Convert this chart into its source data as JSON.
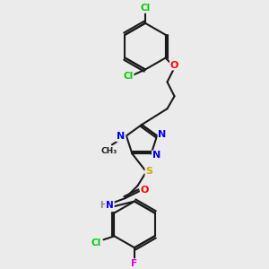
{
  "bg_color": "#ebebeb",
  "bond_color": "#1a1a1a",
  "atom_colors": {
    "Cl": "#00cc00",
    "F": "#dd00dd",
    "O": "#ff0000",
    "N": "#0000ee",
    "S": "#ccaa00",
    "H": "#888888",
    "C": "#1a1a1a"
  }
}
